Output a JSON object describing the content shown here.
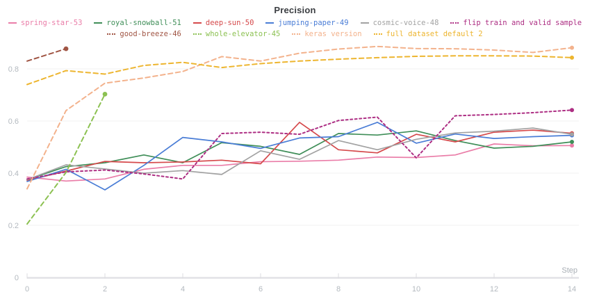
{
  "chart_data": {
    "type": "line",
    "title": "Precision",
    "xlabel": "Step",
    "xlim": [
      0,
      14
    ],
    "ylim": [
      0,
      0.93
    ],
    "grid": "horizontal-only",
    "x_ticks": [
      0,
      2,
      4,
      6,
      8,
      10,
      12,
      14
    ],
    "x_tick_labels": [
      "0",
      "2",
      "4",
      "6",
      "8",
      "10",
      "12",
      "14"
    ],
    "y_ticks": [
      0,
      0.2,
      0.4,
      0.6,
      0.8
    ],
    "y_tick_labels": [
      "0",
      "0.2",
      "0.4",
      "0.6",
      "0.8"
    ],
    "legend_position": "top",
    "legend_rows": [
      [
        "spring-star-53",
        "royal-snowball-51",
        "deep-sun-50",
        "jumping-paper-49",
        "cosmic-voice-48",
        "flip train and valid sample"
      ],
      [
        "good-breeze-46",
        "whole-elevator-45",
        "keras version",
        "full dataset default 2"
      ]
    ],
    "series": [
      {
        "name": "spring-star-53",
        "color": "#EA7DA8",
        "style": "solid",
        "x": [
          0,
          1,
          2,
          3,
          4,
          5,
          6,
          7,
          8,
          9,
          10,
          11,
          12,
          13,
          14
        ],
        "y": [
          0.385,
          0.37,
          0.378,
          0.415,
          0.43,
          0.43,
          0.444,
          0.446,
          0.45,
          0.462,
          0.46,
          0.47,
          0.512,
          0.505,
          0.506
        ]
      },
      {
        "name": "royal-snowball-51",
        "color": "#3F8E58",
        "style": "solid",
        "x": [
          0,
          1,
          2,
          3,
          4,
          5,
          6,
          7,
          8,
          9,
          10,
          11,
          12,
          13,
          14
        ],
        "y": [
          0.375,
          0.425,
          0.44,
          0.47,
          0.44,
          0.517,
          0.503,
          0.472,
          0.552,
          0.546,
          0.562,
          0.525,
          0.496,
          0.503,
          0.52
        ]
      },
      {
        "name": "deep-sun-50",
        "color": "#D5494B",
        "style": "solid",
        "x": [
          0,
          1,
          2,
          3,
          4,
          5,
          6,
          7,
          8,
          9,
          10,
          11,
          12,
          13,
          14
        ],
        "y": [
          0.372,
          0.408,
          0.445,
          0.44,
          0.443,
          0.45,
          0.436,
          0.595,
          0.49,
          0.478,
          0.549,
          0.52,
          0.557,
          0.565,
          0.553
        ]
      },
      {
        "name": "jumping-paper-49",
        "color": "#4A7DD6",
        "style": "solid",
        "x": [
          0,
          1,
          2,
          3,
          4,
          5,
          6,
          7,
          8,
          9,
          10,
          11,
          12,
          13,
          14
        ],
        "y": [
          0.368,
          0.415,
          0.336,
          0.43,
          0.537,
          0.52,
          0.495,
          0.535,
          0.54,
          0.595,
          0.515,
          0.55,
          0.533,
          0.54,
          0.545
        ]
      },
      {
        "name": "cosmic-voice-48",
        "color": "#A2A2A2",
        "style": "solid",
        "x": [
          0,
          1,
          2,
          3,
          4,
          5,
          6,
          7,
          8,
          9,
          10,
          11,
          12,
          13,
          14
        ],
        "y": [
          0.375,
          0.432,
          0.416,
          0.4,
          0.41,
          0.395,
          0.486,
          0.453,
          0.525,
          0.49,
          0.53,
          0.554,
          0.561,
          0.573,
          0.549
        ]
      },
      {
        "name": "flip train and valid sample",
        "color": "#AD2E83",
        "style": "dashed-fine",
        "x": [
          0,
          1,
          2,
          3,
          4,
          5,
          6,
          7,
          8,
          9,
          10,
          11,
          12,
          13,
          14
        ],
        "y": [
          0.378,
          0.405,
          0.412,
          0.397,
          0.378,
          0.552,
          0.557,
          0.549,
          0.602,
          0.615,
          0.459,
          0.62,
          0.625,
          0.632,
          0.642
        ]
      },
      {
        "name": "good-breeze-46",
        "color": "#A05544",
        "style": "dashed",
        "x": [
          0,
          1
        ],
        "y": [
          0.83,
          0.877
        ]
      },
      {
        "name": "whole-elevator-45",
        "color": "#8CC152",
        "style": "dashed",
        "x": [
          0,
          1,
          2
        ],
        "y": [
          0.205,
          0.403,
          0.703
        ]
      },
      {
        "name": "keras version",
        "color": "#F3B28C",
        "style": "dashed",
        "x": [
          0,
          1,
          2,
          3,
          4,
          5,
          6,
          7,
          8,
          9,
          10,
          11,
          12,
          13,
          14
        ],
        "y": [
          0.34,
          0.64,
          0.745,
          0.765,
          0.79,
          0.847,
          0.83,
          0.86,
          0.876,
          0.886,
          0.878,
          0.877,
          0.872,
          0.863,
          0.881
        ]
      },
      {
        "name": "full dataset default 2",
        "color": "#EDB52F",
        "style": "dashed",
        "x": [
          0,
          1,
          2,
          3,
          4,
          5,
          6,
          7,
          8,
          9,
          10,
          11,
          12,
          13,
          14
        ],
        "y": [
          0.74,
          0.793,
          0.78,
          0.813,
          0.825,
          0.805,
          0.82,
          0.83,
          0.837,
          0.843,
          0.848,
          0.85,
          0.85,
          0.849,
          0.843
        ]
      }
    ],
    "style_colors": {
      "grid_line": "#F0F0F2",
      "axis_line": "#E2E2E6",
      "tick_mark": "#DCDCE0",
      "tick_label": "#B3B9BF",
      "axis_label": "#A8AEB4",
      "title": "#3B3E42",
      "background": "#FFFFFF"
    }
  }
}
